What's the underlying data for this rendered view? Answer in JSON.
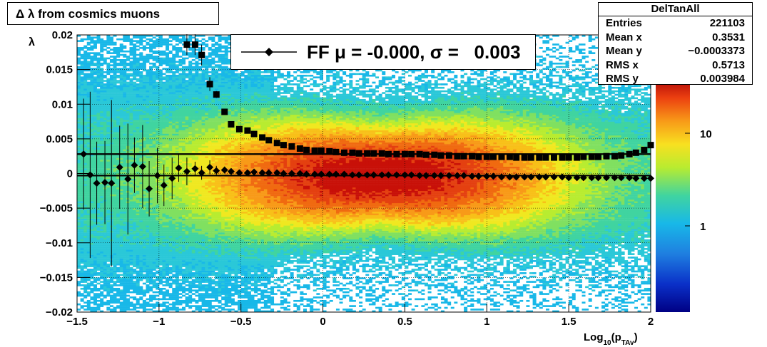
{
  "title": "Δ λ from cosmics muons",
  "legend": {
    "label": "FF μ = -0.000, σ =   0.003"
  },
  "stats": {
    "name": "DelTanAll",
    "rows": [
      {
        "key": "Entries",
        "value": "221103"
      },
      {
        "key": "Mean x",
        "value": "0.3531"
      },
      {
        "key": "Mean y",
        "value": "−0.0003373"
      },
      {
        "key": "RMS x",
        "value": "0.5713"
      },
      {
        "key": "RMS y",
        "value": "0.003984"
      }
    ]
  },
  "colorbar": {
    "tick_labels": [
      "10",
      "1"
    ]
  },
  "chart_data": {
    "type": "heatmap",
    "xlabel_main": "Log",
    "xlabel_sub": "10",
    "xlabel_paren_open": "(p",
    "xlabel_sub2": "TAv",
    "xlabel_paren_close": ")",
    "ylabel": "λ",
    "xlim": [
      -1.5,
      2.0
    ],
    "ylim": [
      -0.02,
      0.02
    ],
    "grid": true,
    "x_ticks": [
      -1.5,
      -1,
      -0.5,
      0,
      0.5,
      1,
      1.5,
      2
    ],
    "x_tick_labels": [
      "−1.5",
      "−1",
      "−0.5",
      "0",
      "0.5",
      "1",
      "1.5",
      "2"
    ],
    "y_ticks": [
      0.02,
      0.015,
      0.01,
      0.005,
      0,
      -0.005,
      -0.01,
      -0.015,
      -0.02
    ],
    "y_tick_labels": [
      "0.02",
      "0.015",
      "0.01",
      "0.005",
      "0",
      "−0.005",
      "−0.01",
      "−0.015",
      "−0.02"
    ],
    "colorbar_scale": "log",
    "colorbar_range": [
      0.1,
      40
    ],
    "band": {
      "peak_x": 0.35,
      "mean_y": -0.0003
    },
    "mean_series": {
      "marker": "diamond",
      "x": [
        -1.46,
        -1.42,
        -1.38,
        -1.33,
        -1.29,
        -1.24,
        -1.19,
        -1.15,
        -1.1,
        -1.06,
        -1.01,
        -0.97,
        -0.92,
        -0.88,
        -0.83,
        -0.78,
        -0.74,
        -0.69,
        -0.65,
        -0.6,
        -0.56,
        -0.51,
        -0.46,
        -0.42,
        -0.37,
        -0.33,
        -0.28,
        -0.24,
        -0.19,
        -0.14,
        -0.1,
        -0.05,
        -0.01,
        0.04,
        0.08,
        0.13,
        0.18,
        0.22,
        0.27,
        0.31,
        0.36,
        0.4,
        0.45,
        0.5,
        0.54,
        0.59,
        0.63,
        0.68,
        0.72,
        0.77,
        0.82,
        0.86,
        0.91,
        0.95,
        1.0,
        1.04,
        1.09,
        1.14,
        1.18,
        1.23,
        1.27,
        1.32,
        1.36,
        1.41,
        1.46,
        1.5,
        1.55,
        1.59,
        1.64,
        1.68,
        1.73,
        1.78,
        1.82,
        1.87,
        1.91,
        1.96,
        2.0
      ],
      "y": [
        0.0028,
        -0.0002,
        -0.0014,
        -0.0013,
        -0.0014,
        0.0009,
        -0.0008,
        0.0012,
        0.001,
        -0.0022,
        -0.0003,
        -0.0017,
        -0.0007,
        0.0008,
        0.0003,
        0.0007,
        0.0001,
        0.0009,
        0.0004,
        0.0005,
        0.0003,
        0.0001,
        0.0001,
        0.0002,
        0.0001,
        0.0001,
        0.0001,
        0.0,
        0.0,
        0.0,
        -0.0001,
        -0.0001,
        -0.0001,
        -0.0001,
        -0.0001,
        -0.0001,
        -0.0002,
        -0.0002,
        -0.0002,
        -0.0002,
        -0.0002,
        -0.0002,
        -0.0002,
        -0.0002,
        -0.0002,
        -0.0003,
        -0.0003,
        -0.0003,
        -0.0003,
        -0.0003,
        -0.0003,
        -0.0003,
        -0.0004,
        -0.0004,
        -0.0004,
        -0.0004,
        -0.0005,
        -0.0005,
        -0.0005,
        -0.0005,
        -0.0005,
        -0.0005,
        -0.0005,
        -0.0005,
        -0.0005,
        -0.0006,
        -0.0006,
        -0.0006,
        -0.0006,
        -0.0006,
        -0.0006,
        -0.0006,
        -0.0006,
        -0.0006,
        -0.0007,
        -0.0007,
        -0.0007
      ],
      "yerr": [
        0.008,
        0.012,
        0.006,
        0.006,
        0.012,
        0.006,
        0.008,
        0.004,
        0.006,
        0.004,
        0.004,
        0.003,
        0.003,
        0.002,
        0.002,
        0.001,
        0.001,
        0.001,
        0.0007,
        0.0005,
        0.0004,
        0.0003,
        0.0003,
        0.0002,
        0.0002,
        0.0002,
        0.0002,
        0.0001,
        0.0001,
        0.0001,
        0.0001,
        0.0001,
        0.0001,
        0.0001,
        0.0001,
        0.0001,
        0.0001,
        0.0001,
        0.0001,
        0.0001,
        0.0001,
        0.0001,
        0.0001,
        0.0001,
        0.0001,
        0.0001,
        0.0001,
        0.0001,
        0.0001,
        0.0001,
        0.0001,
        0.0001,
        0.0001,
        0.0001,
        0.0001,
        0.0001,
        0.0001,
        0.0001,
        0.0001,
        0.0001,
        0.0001,
        0.0001,
        0.0001,
        0.0001,
        0.0001,
        0.0001,
        0.0001,
        0.0001,
        0.0001,
        0.0001,
        0.0001,
        0.0001,
        0.0001,
        0.0001,
        0.0001,
        0.0001,
        0.0001
      ]
    },
    "rms_series": {
      "marker": "square",
      "x": [
        -0.83,
        -0.78,
        -0.74,
        -0.69,
        -0.65,
        -0.6,
        -0.56,
        -0.51,
        -0.46,
        -0.42,
        -0.37,
        -0.33,
        -0.28,
        -0.24,
        -0.19,
        -0.14,
        -0.1,
        -0.05,
        -0.01,
        0.04,
        0.08,
        0.13,
        0.18,
        0.22,
        0.27,
        0.31,
        0.36,
        0.4,
        0.45,
        0.5,
        0.54,
        0.59,
        0.63,
        0.68,
        0.72,
        0.77,
        0.82,
        0.86,
        0.91,
        0.95,
        1.0,
        1.04,
        1.09,
        1.14,
        1.18,
        1.23,
        1.27,
        1.32,
        1.36,
        1.41,
        1.46,
        1.5,
        1.55,
        1.59,
        1.64,
        1.68,
        1.73,
        1.78,
        1.82,
        1.87,
        1.91,
        1.96,
        2.0
      ],
      "y": [
        0.0186,
        0.0186,
        0.0171,
        0.0129,
        0.0114,
        0.0089,
        0.0071,
        0.0064,
        0.0062,
        0.0057,
        0.0052,
        0.0048,
        0.0044,
        0.0041,
        0.0039,
        0.0036,
        0.0034,
        0.0033,
        0.0033,
        0.0032,
        0.0031,
        0.003,
        0.003,
        0.0029,
        0.0029,
        0.0029,
        0.0029,
        0.0028,
        0.0028,
        0.0028,
        0.0028,
        0.0028,
        0.0027,
        0.0027,
        0.0026,
        0.0026,
        0.0025,
        0.0025,
        0.0025,
        0.0024,
        0.0024,
        0.0024,
        0.0024,
        0.0024,
        0.0023,
        0.0023,
        0.0023,
        0.0023,
        0.0023,
        0.0023,
        0.0023,
        0.0023,
        0.0023,
        0.0024,
        0.0024,
        0.0024,
        0.0025,
        0.0025,
        0.0026,
        0.0028,
        0.003,
        0.0034,
        0.0041
      ],
      "yerr": [
        0.0015,
        0.0015,
        0.0015,
        0.001,
        0.0005,
        0.0003,
        0.0002,
        0.0002,
        0.0001,
        0.0001,
        0.0001,
        0.0001,
        0.0001,
        0.0001,
        0.0001,
        0.0001,
        0.0001,
        0.0001,
        0.0001,
        0.0001,
        0.0001,
        0.0001,
        0.0001,
        0.0001,
        0.0001,
        0.0001,
        0.0001,
        0.0001,
        0.0001,
        0.0001,
        0.0001,
        0.0001,
        0.0001,
        0.0001,
        0.0001,
        0.0001,
        0.0001,
        0.0001,
        0.0001,
        0.0001,
        0.0001,
        0.0001,
        0.0001,
        0.0001,
        0.0001,
        0.0001,
        0.0001,
        0.0001,
        0.0001,
        0.0001,
        0.0001,
        0.0001,
        0.0001,
        0.0001,
        0.0001,
        0.0001,
        0.0001,
        0.0001,
        0.0001,
        0.0001,
        0.0003,
        0.0004,
        0.0005
      ]
    },
    "fit_lines": [
      {
        "name": "mean-fit",
        "y": -0.0003
      },
      {
        "name": "rms-fit",
        "y": 0.0028
      }
    ]
  }
}
